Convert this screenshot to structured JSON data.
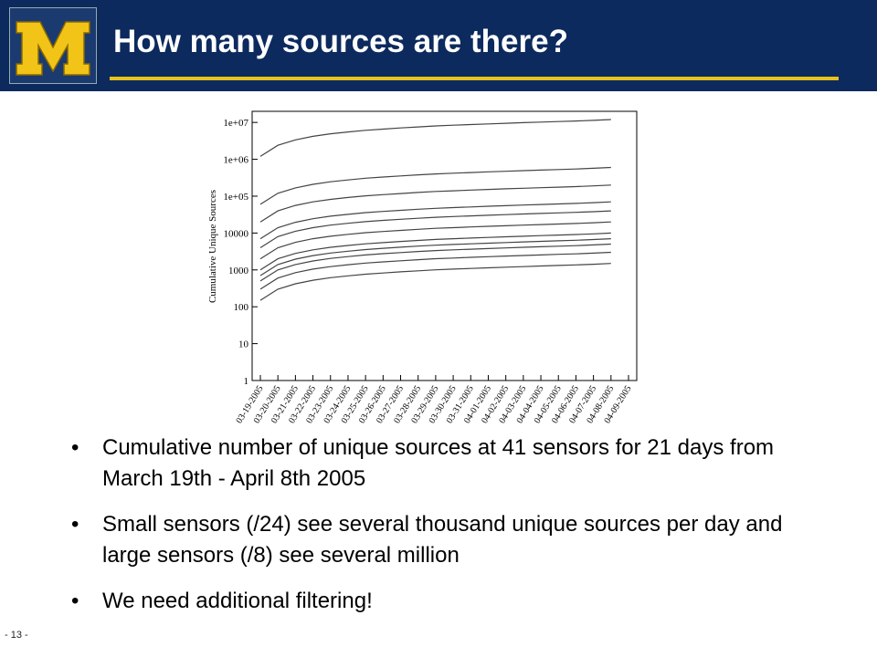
{
  "header": {
    "title": "How many sources are there?"
  },
  "page_number": "- 13 -",
  "bullets": [
    "Cumulative number of unique sources at 41 sensors for 21 days from March 19th - April 8th 2005",
    "Small sensors (/24) see several thousand unique sources per day and large sensors (/8) see several million",
    "We need additional filtering!"
  ],
  "chart_data": {
    "type": "line",
    "ylabel": "Cumulative Unique Sources",
    "log_scale": true,
    "categories": [
      "03-19-2005",
      "03-20-2005",
      "03-21-2005",
      "03-22-2005",
      "03-23-2005",
      "03-24-2005",
      "03-25-2005",
      "03-26-2005",
      "03-27-2005",
      "03-28-2005",
      "03-29-2005",
      "03-30-2005",
      "03-31-2005",
      "04-01-2005",
      "04-02-2005",
      "04-03-2005",
      "04-04-2005",
      "04-05-2005",
      "04-06-2005",
      "04-07-2005",
      "04-08-2005",
      "04-09-2005"
    ],
    "ylim": [
      1,
      20000000
    ],
    "yticks": [
      1,
      10,
      100,
      1000,
      10000,
      {
        "value": 100000,
        "label": "1e+05"
      },
      {
        "value": 1000000,
        "label": "1e+06"
      },
      {
        "value": 10000000,
        "label": "1e+07"
      }
    ],
    "color": "#444444",
    "series": [
      {
        "values": [
          1200000,
          2400000,
          3360000,
          4200000,
          4920000,
          5520000,
          6120000,
          6600000,
          7080000,
          7560000,
          8040000,
          8400000,
          8760000,
          9120000,
          9480000,
          9840000,
          10200000,
          10560000,
          10920000,
          11400000,
          12000000,
          null
        ]
      },
      {
        "values": [
          60000,
          120000,
          168000,
          210000,
          246000,
          276000,
          306000,
          330000,
          354000,
          378000,
          402000,
          420000,
          438000,
          456000,
          474000,
          492000,
          510000,
          528000,
          546000,
          570000,
          600000,
          null
        ]
      },
      {
        "values": [
          20000,
          40000,
          56000,
          70000,
          82000,
          92000,
          102000,
          110000,
          118000,
          126000,
          134000,
          140000,
          146000,
          152000,
          158000,
          164000,
          170000,
          176000,
          182000,
          190000,
          200000,
          null
        ]
      },
      {
        "values": [
          7000,
          14000,
          19600,
          24500,
          28700,
          32200,
          35700,
          38500,
          41300,
          44100,
          46900,
          49000,
          51100,
          53200,
          55300,
          57400,
          59500,
          61600,
          63700,
          66500,
          70000,
          null
        ]
      },
      {
        "values": [
          4000,
          8000,
          11200,
          14000,
          16400,
          18400,
          20400,
          22000,
          23600,
          25200,
          26800,
          28000,
          29200,
          30400,
          31600,
          32800,
          34000,
          35200,
          36400,
          38000,
          40000,
          null
        ]
      },
      {
        "values": [
          2000,
          4000,
          5600,
          7000,
          8200,
          9200,
          10200,
          11000,
          11800,
          12600,
          13400,
          14000,
          14600,
          15200,
          15800,
          16400,
          17000,
          17600,
          18200,
          19000,
          20000,
          null
        ]
      },
      {
        "values": [
          1000,
          2000,
          2800,
          3500,
          4100,
          4600,
          5100,
          5500,
          5900,
          6300,
          6700,
          7000,
          7300,
          7600,
          7900,
          8200,
          8500,
          8800,
          9100,
          9500,
          10000,
          null
        ]
      },
      {
        "values": [
          700,
          1400,
          1960,
          2450,
          2870,
          3220,
          3570,
          3850,
          4130,
          4410,
          4690,
          4900,
          5110,
          5320,
          5530,
          5740,
          5950,
          6160,
          6370,
          6650,
          7000,
          null
        ]
      },
      {
        "values": [
          500,
          1000,
          1400,
          1750,
          2050,
          2300,
          2550,
          2750,
          2950,
          3150,
          3350,
          3500,
          3650,
          3800,
          3950,
          4100,
          4250,
          4400,
          4550,
          4750,
          5000,
          null
        ]
      },
      {
        "values": [
          300,
          600,
          840,
          1050,
          1230,
          1380,
          1530,
          1650,
          1770,
          1890,
          2010,
          2100,
          2190,
          2280,
          2370,
          2460,
          2550,
          2640,
          2730,
          2850,
          3000,
          null
        ]
      },
      {
        "values": [
          150,
          300,
          420,
          525,
          615,
          690,
          765,
          825,
          885,
          945,
          1005,
          1050,
          1095,
          1140,
          1185,
          1230,
          1275,
          1320,
          1365,
          1425,
          1500,
          null
        ]
      }
    ]
  }
}
